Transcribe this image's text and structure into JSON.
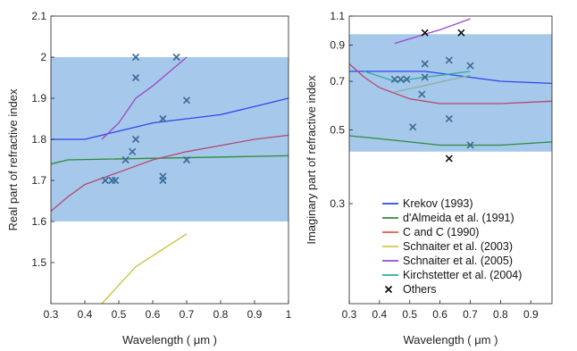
{
  "chart_data": [
    {
      "type": "line",
      "ylabel": "Real part of refractive index",
      "xlabel": "Wavelength ( μm )",
      "xlim": [
        0.3,
        1.0
      ],
      "ylim": [
        1.4,
        2.1
      ],
      "xticks": [
        "0.3",
        "0.4",
        "0.5",
        "0.6",
        "0.7",
        "0.8",
        "0.9",
        "1"
      ],
      "yticks": [
        "1.5",
        "1.6",
        "1.7",
        "1.8",
        "1.9",
        "2",
        "2.1"
      ],
      "band": [
        1.6,
        2.0
      ],
      "band_color": "#a6c8ea",
      "series": [
        {
          "name": "Krekov (1993)",
          "color": "#2c46f0",
          "x": [
            0.3,
            0.4,
            0.45,
            0.5,
            0.55,
            0.6,
            0.7,
            0.8,
            0.9,
            1.0
          ],
          "y": [
            1.8,
            1.8,
            1.81,
            1.82,
            1.83,
            1.84,
            1.85,
            1.86,
            1.88,
            1.9
          ]
        },
        {
          "name": "d'Almeida et al. (1991)",
          "color": "#2e8b3a",
          "x": [
            0.3,
            0.35,
            1.0
          ],
          "y": [
            1.74,
            1.75,
            1.76
          ]
        },
        {
          "name": "C and C (1990)",
          "color": "#b04a72",
          "x": [
            0.3,
            0.35,
            0.4,
            0.5,
            0.6,
            0.7,
            0.8,
            0.9,
            1.0
          ],
          "y": [
            1.625,
            1.66,
            1.69,
            1.72,
            1.75,
            1.77,
            1.785,
            1.8,
            1.81
          ]
        },
        {
          "name": "Schnaiter et al. (2003)",
          "color": "#c8c030",
          "x": [
            0.45,
            0.55,
            0.7
          ],
          "y": [
            1.4,
            1.49,
            1.57
          ]
        },
        {
          "name": "Schnaiter et al. (2005)",
          "color": "#9a48c8",
          "x": [
            0.45,
            0.5,
            0.55,
            0.6,
            0.7
          ],
          "y": [
            1.8,
            1.84,
            1.9,
            1.93,
            2.0
          ]
        },
        {
          "name": "Others",
          "marker": "x",
          "color": "#3a6a94",
          "x": [
            0.46,
            0.48,
            0.49,
            0.52,
            0.54,
            0.55,
            0.55,
            0.55,
            0.63,
            0.63,
            0.63,
            0.67,
            0.7,
            0.7
          ],
          "y": [
            1.7,
            1.7,
            1.7,
            1.75,
            1.77,
            1.8,
            1.95,
            2.0,
            1.85,
            1.71,
            1.7,
            2.0,
            1.895,
            1.75
          ]
        }
      ]
    },
    {
      "type": "line",
      "ylabel": "Imaginary part of refractive index",
      "xlabel": "Wavelength ( μm )",
      "xlim": [
        0.3,
        0.97
      ],
      "ylim": [
        0.15,
        1.1
      ],
      "xticks": [
        "0.3",
        "0.4",
        "0.5",
        "0.6",
        "0.7",
        "0.8",
        "0.9"
      ],
      "yticks": [
        "0.3",
        "0.5",
        "0.7",
        "0.9",
        "1.1"
      ],
      "band": [
        0.43,
        0.97
      ],
      "band_color": "#a6c8ea",
      "series": [
        {
          "name": "Krekov (1993)",
          "color": "#2c46f0",
          "x": [
            0.3,
            0.4,
            0.5,
            0.55,
            0.6,
            0.7,
            0.8,
            0.97
          ],
          "y": [
            0.75,
            0.75,
            0.75,
            0.75,
            0.74,
            0.72,
            0.7,
            0.69
          ]
        },
        {
          "name": "d'Almeida et al. (1991)",
          "color": "#2e8b3a",
          "x": [
            0.3,
            0.4,
            0.5,
            0.6,
            0.7,
            0.8,
            0.97
          ],
          "y": [
            0.48,
            0.47,
            0.46,
            0.45,
            0.45,
            0.45,
            0.46
          ]
        },
        {
          "name": "C and C (1990)",
          "color": "#b04a72",
          "x": [
            0.3,
            0.35,
            0.4,
            0.5,
            0.6,
            0.7,
            0.8,
            0.97
          ],
          "y": [
            0.79,
            0.72,
            0.67,
            0.62,
            0.6,
            0.6,
            0.6,
            0.61
          ]
        },
        {
          "name": "Schnaiter et al. (2003)",
          "color": "#c8c030",
          "x": [],
          "y": []
        },
        {
          "name": "Schnaiter et al. (2005)",
          "color": "#9a48c8",
          "x": [
            0.45,
            0.55,
            0.6,
            0.7
          ],
          "y": [
            0.91,
            0.97,
            1.0,
            1.08
          ]
        },
        {
          "name": "Kirchstetter et al. (2004)",
          "color": "#2eaaa0",
          "x": [
            0.35,
            0.45,
            0.55,
            0.7
          ],
          "y": [
            0.75,
            0.7,
            0.72,
            0.75
          ]
        },
        {
          "name": "Kirchstetter et al. (2004)",
          "color": "#8ab0a0",
          "x": [
            0.45,
            0.55,
            0.7
          ],
          "y": [
            0.65,
            0.68,
            0.73
          ]
        },
        {
          "name": "Others",
          "marker": "x",
          "color": "#3a6a94",
          "x": [
            0.45,
            0.47,
            0.49,
            0.51,
            0.54,
            0.55,
            0.55,
            0.63,
            0.63,
            0.7,
            0.7,
            0.55,
            0.67,
            0.63
          ],
          "y": [
            0.71,
            0.71,
            0.71,
            0.51,
            0.64,
            0.79,
            0.72,
            0.81,
            0.54,
            0.78,
            0.45,
            0.98,
            0.98,
            0.41
          ]
        }
      ],
      "legend": {
        "placement": "lower-center",
        "entries": [
          {
            "label": "Krekov (1993)",
            "color": "#2c46f0",
            "marker": "line"
          },
          {
            "label": "d'Almeida et al. (1991)",
            "color": "#2e8b3a",
            "marker": "line"
          },
          {
            "label": "C and C (1990)",
            "color": "#e0584a",
            "marker": "line"
          },
          {
            "label": "Schnaiter et al. (2003)",
            "color": "#d6c84a",
            "marker": "line"
          },
          {
            "label": "Schnaiter et al. (2005)",
            "color": "#9a48c8",
            "marker": "line"
          },
          {
            "label": "Kirchstetter et al. (2004)",
            "color": "#2eaaa0",
            "marker": "line"
          },
          {
            "label": "Others",
            "color": "#111111",
            "marker": "x"
          }
        ]
      }
    }
  ]
}
